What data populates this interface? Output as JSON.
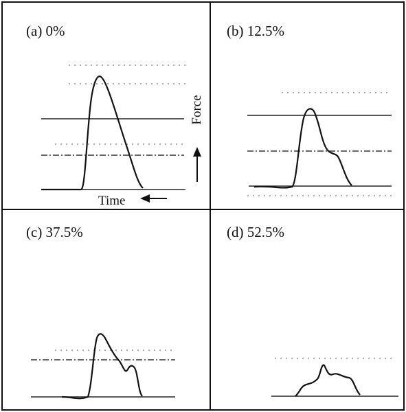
{
  "panels": [
    {
      "label": "(a) 0%"
    },
    {
      "label": "(b) 12.5%"
    },
    {
      "label": "(c) 37.5%"
    },
    {
      "label": "(d) 52.5%"
    }
  ],
  "axis_labels": {
    "force": "Force",
    "time": "Time"
  }
}
